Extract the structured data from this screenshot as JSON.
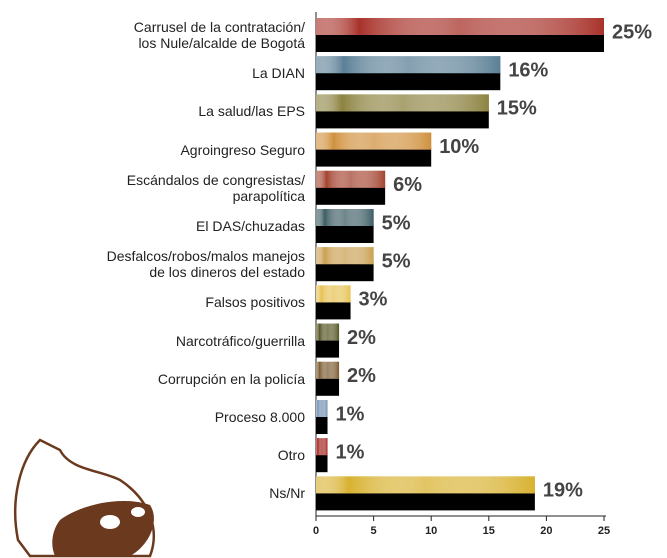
{
  "chart_data": {
    "type": "bar",
    "orientation": "horizontal",
    "categories": [
      "Carrusel de la contratación/\nlos Nule/alcalde de Bogotá",
      "La DIAN",
      "La salud/las EPS",
      "Agroingreso Seguro",
      "Escándalos de congresistas/\nparapolítica",
      "El DAS/chuzadas",
      "Desfalcos/robos/malos manejos\nde los dineros del estado",
      "Falsos positivos",
      "Narcotráfico/guerrilla",
      "Corrupción en la policía",
      "Proceso 8.000",
      "Otro",
      "Ns/Nr"
    ],
    "values": [
      25,
      16,
      15,
      10,
      6,
      5,
      5,
      3,
      2,
      2,
      1,
      1,
      19
    ],
    "value_labels": [
      "25%",
      "16%",
      "15%",
      "10%",
      "6%",
      "5%",
      "5%",
      "3%",
      "2%",
      "2%",
      "1%",
      "1%",
      "19%"
    ],
    "colors": [
      "#a8322a",
      "#5b7f96",
      "#8c8240",
      "#d0913e",
      "#a3442f",
      "#3d5d64",
      "#c9a052",
      "#e6c152",
      "#545423",
      "#7b5a2f",
      "#7391b1",
      "#a32420",
      "#d8b12f"
    ],
    "xlim": [
      0,
      25
    ],
    "xticks": [
      0,
      5,
      10,
      15,
      20,
      25
    ]
  }
}
